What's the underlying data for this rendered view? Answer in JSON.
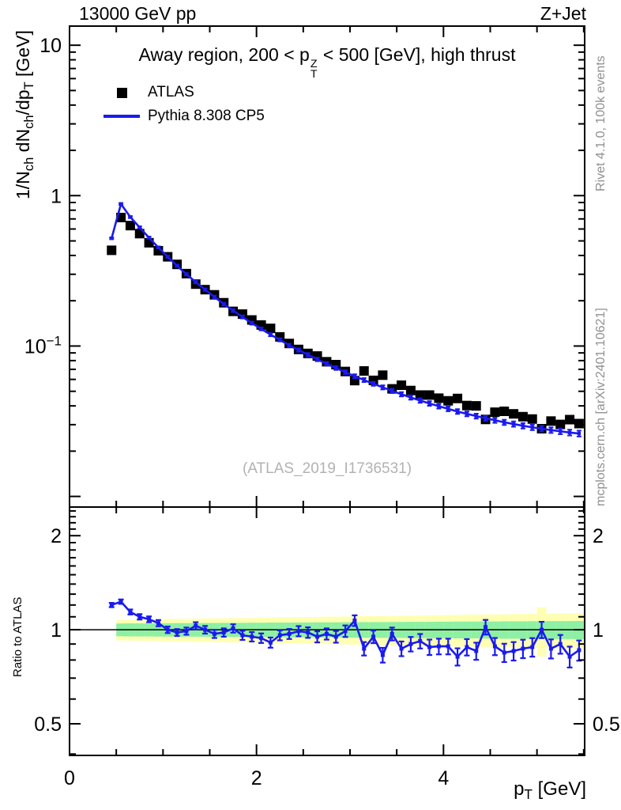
{
  "header": {
    "left_title": "13000 GeV pp",
    "right_title": "Z+Jet"
  },
  "panel_title": {
    "pre": "Away region, 200 < p",
    "sup": "Z",
    "sub": "T",
    "post": " < 500 [GeV], high thrust"
  },
  "legend": {
    "items": [
      {
        "label": "ATLAS",
        "marker": "black-filled-square"
      },
      {
        "label": "Pythia 8.308 CP5",
        "marker": "blue-line"
      }
    ]
  },
  "watermark": "(ATLAS_2019_I1736531)",
  "ylabel": {
    "seg0": "1/N",
    "seg1": "ch",
    "seg2": " dN",
    "seg3": "ch",
    "seg4": "/dp",
    "seg5": "T",
    "seg6": " [GeV]"
  },
  "ratio_ylabel": "Ratio to ATLAS",
  "xlabel": {
    "pre": "p",
    "sub": "T",
    "post": " [GeV]"
  },
  "side_notes": {
    "top": "Rivet 4.1.0,  100k events",
    "bottom": "mcplots.cern.ch [arXiv:2401.10621]"
  },
  "colors": {
    "mc_blue": "#1a1aee",
    "data_black": "#000000",
    "band_green": "#8df0a3",
    "band_yellow": "#ffffb3",
    "gray_text": "#909090",
    "watermark_gray": "#b2b2b2"
  },
  "chart_data": {
    "type": "line",
    "title": "Away region, 200 < pT(Z) < 500 [GeV], high thrust",
    "xlabel": "pT [GeV]",
    "ylabel": "1/Nch dNch/dpT [GeV]",
    "ratio_label": "Ratio to ATLAS",
    "legend_position": "top-left",
    "grid": false,
    "xlim": [
      0,
      5.51
    ],
    "main_yscale": "log",
    "main_ylim": [
      0.0085,
      13.4
    ],
    "ratio_yscale": "log",
    "ratio_ylim": [
      0.396,
      2.47
    ],
    "x_ticks": {
      "labeled": [
        0,
        2,
        4
      ],
      "minor_step": 0.5
    },
    "main_y_ticks": {
      "labeled": [
        {
          "v": 10,
          "label": "10"
        },
        {
          "v": 1,
          "label": "1"
        },
        {
          "v": 0.1,
          "label": "10^-1"
        }
      ],
      "decades": [
        10,
        1,
        0.1,
        0.01
      ]
    },
    "ratio_y_ticks": {
      "labeled": [
        {
          "v": 2,
          "label": "2"
        },
        {
          "v": 1,
          "label": "1"
        },
        {
          "v": 0.5,
          "label": "0.5"
        }
      ]
    },
    "bin_width": 0.1,
    "x": [
      0.45,
      0.55,
      0.65,
      0.75,
      0.85,
      0.95,
      1.05,
      1.15,
      1.25,
      1.35,
      1.45,
      1.55,
      1.65,
      1.75,
      1.85,
      1.95,
      2.05,
      2.15,
      2.25,
      2.35,
      2.45,
      2.55,
      2.65,
      2.75,
      2.85,
      2.95,
      3.05,
      3.15,
      3.25,
      3.35,
      3.45,
      3.55,
      3.65,
      3.75,
      3.85,
      3.95,
      4.05,
      4.15,
      4.25,
      4.35,
      4.45,
      4.55,
      4.65,
      4.75,
      4.85,
      4.95,
      5.05,
      5.15,
      5.25,
      5.35,
      5.45
    ],
    "series": [
      {
        "name": "ATLAS",
        "style": "scatter",
        "marker": "filled-square",
        "color": "#000000",
        "values": [
          0.433,
          0.715,
          0.632,
          0.559,
          0.486,
          0.43,
          0.392,
          0.349,
          0.303,
          0.258,
          0.237,
          0.219,
          0.194,
          0.17,
          0.163,
          0.149,
          0.138,
          0.131,
          0.115,
          0.104,
          0.0949,
          0.0893,
          0.0858,
          0.0786,
          0.0752,
          0.0677,
          0.0589,
          0.0683,
          0.0591,
          0.064,
          0.0519,
          0.0549,
          0.0506,
          0.0472,
          0.0472,
          0.045,
          0.0432,
          0.0448,
          0.0402,
          0.04,
          0.0325,
          0.0363,
          0.0368,
          0.0354,
          0.0339,
          0.0327,
          0.0282,
          0.0317,
          0.0301,
          0.0324,
          0.0305
        ]
      },
      {
        "name": "Pythia 8.308 CP5",
        "style": "line-with-markers",
        "marker": "small-square",
        "color": "#1a1aee",
        "values": [
          0.52,
          0.88,
          0.72,
          0.615,
          0.525,
          0.452,
          0.392,
          0.342,
          0.3,
          0.266,
          0.237,
          0.212,
          0.19,
          0.172,
          0.156,
          0.142,
          0.13,
          0.119,
          0.11,
          0.101,
          0.094,
          0.0875,
          0.0815,
          0.0762,
          0.0714,
          0.067,
          0.063,
          0.0594,
          0.0561,
          0.0531,
          0.0503,
          0.0478,
          0.0455,
          0.0434,
          0.0415,
          0.0398,
          0.0382,
          0.0367,
          0.0354,
          0.0342,
          0.0331,
          0.0321,
          0.0311,
          0.0303,
          0.0295,
          0.0288,
          0.0282,
          0.0276,
          0.0271,
          0.0266,
          0.0262
        ]
      }
    ],
    "ratio": {
      "name": "Pythia 8.308 CP5 / ATLAS",
      "ref_line": 1,
      "values": [
        1.2,
        1.23,
        1.14,
        1.1,
        1.08,
        1.05,
        1.0,
        0.98,
        0.99,
        1.03,
        1.0,
        0.97,
        0.98,
        1.01,
        0.96,
        0.95,
        0.94,
        0.91,
        0.96,
        0.97,
        0.99,
        0.98,
        0.95,
        0.97,
        0.95,
        0.99,
        1.07,
        0.87,
        0.95,
        0.83,
        0.97,
        0.87,
        0.9,
        0.92,
        0.88,
        0.885,
        0.885,
        0.82,
        0.88,
        0.855,
        1.02,
        0.885,
        0.845,
        0.855,
        0.87,
        0.88,
        1.0,
        0.87,
        0.9,
        0.82,
        0.86
      ],
      "yerr": [
        0.019,
        0.02,
        0.021,
        0.022,
        0.023,
        0.024,
        0.024,
        0.025,
        0.026,
        0.027,
        0.028,
        0.029,
        0.03,
        0.031,
        0.032,
        0.033,
        0.033,
        0.034,
        0.035,
        0.036,
        0.037,
        0.038,
        0.039,
        0.04,
        0.041,
        0.042,
        0.042,
        0.043,
        0.044,
        0.045,
        0.046,
        0.047,
        0.048,
        0.049,
        0.05,
        0.051,
        0.051,
        0.052,
        0.053,
        0.054,
        0.055,
        0.056,
        0.057,
        0.058,
        0.059,
        0.06,
        0.06,
        0.061,
        0.062,
        0.063,
        0.064
      ],
      "bands_x_start": 0.5,
      "band_green_halfwidth": [
        0.047,
        0.047,
        0.048,
        0.048,
        0.048,
        0.049,
        0.049,
        0.05,
        0.05,
        0.05,
        0.051,
        0.051,
        0.052,
        0.052,
        0.052,
        0.053,
        0.053,
        0.054,
        0.054,
        0.054,
        0.055,
        0.055,
        0.056,
        0.056,
        0.056,
        0.057,
        0.057,
        0.058,
        0.058,
        0.058,
        0.059,
        0.059,
        0.06,
        0.06,
        0.06,
        0.061,
        0.061,
        0.062,
        0.062,
        0.062,
        0.063,
        0.063,
        0.064,
        0.064,
        0.064,
        0.065,
        0.065,
        0.066,
        0.066,
        0.066,
        0.067
      ],
      "band_yellow_halfwidth": [
        0.075,
        0.076,
        0.077,
        0.078,
        0.079,
        0.08,
        0.082,
        0.083,
        0.084,
        0.085,
        0.086,
        0.087,
        0.088,
        0.089,
        0.09,
        0.091,
        0.093,
        0.094,
        0.095,
        0.096,
        0.097,
        0.098,
        0.099,
        0.1,
        0.101,
        0.102,
        0.104,
        0.105,
        0.106,
        0.107,
        0.108,
        0.109,
        0.11,
        0.111,
        0.112,
        0.113,
        0.115,
        0.116,
        0.117,
        0.118,
        0.119,
        0.12,
        0.121,
        0.122,
        0.123,
        0.124,
        0.18,
        0.127,
        0.128,
        0.129,
        0.13
      ]
    }
  }
}
